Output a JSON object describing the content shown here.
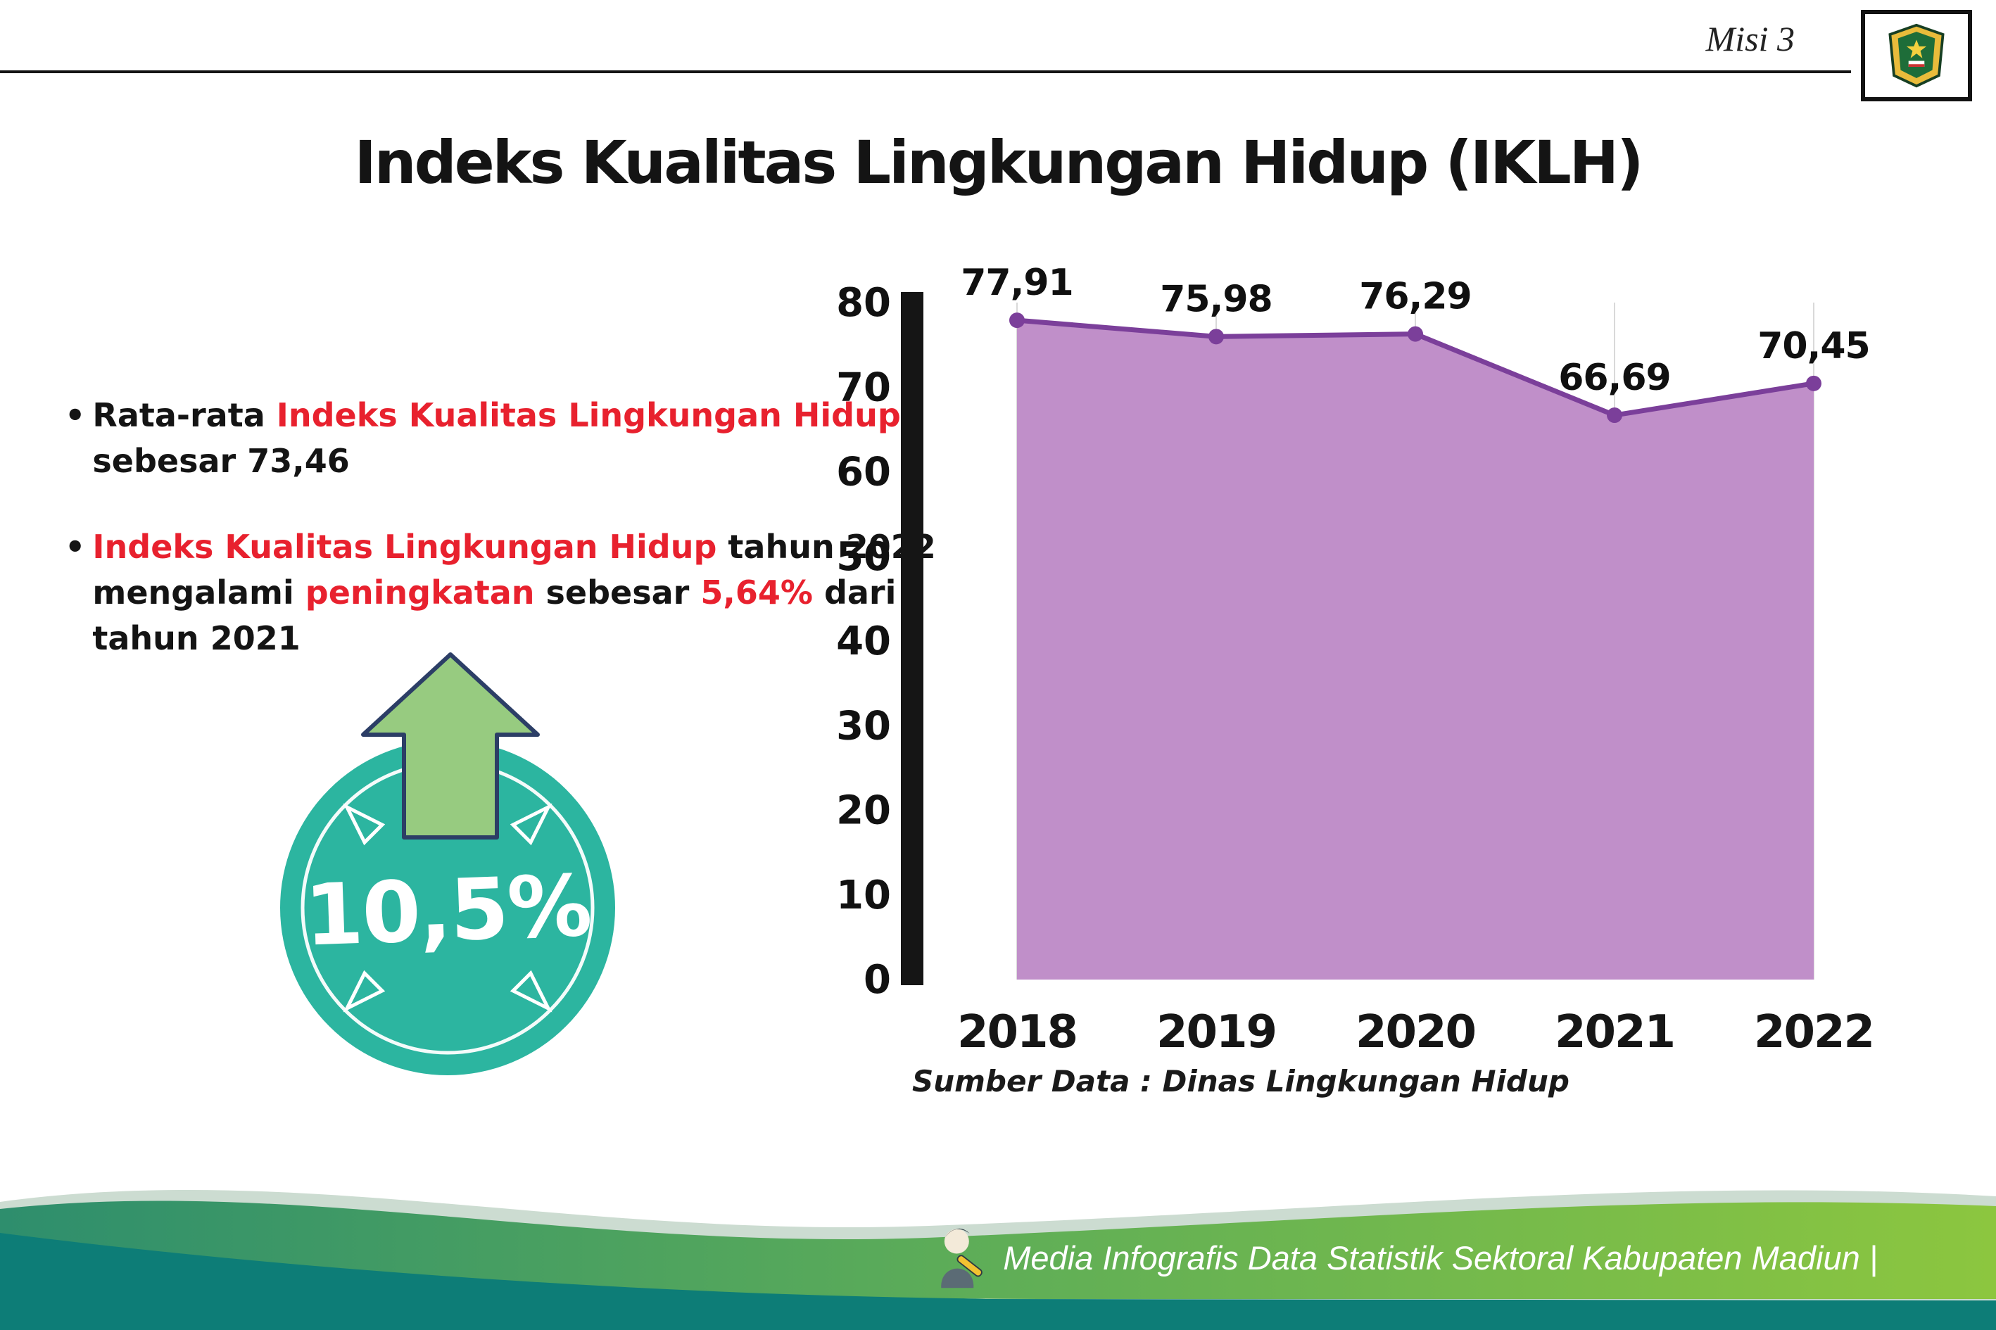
{
  "page": {
    "misi_label": "Misi 3",
    "title": "Indeks Kualitas Lingkungan Hidup (IKLH)"
  },
  "bullets": {
    "bullet_char": "•",
    "b1": {
      "p1": "Rata-rata ",
      "p2": "Indeks Kualitas Lingkungan Hidup",
      "p3": " sebesar 73,46"
    },
    "b2": {
      "p1": "Indeks Kualitas Lingkungan Hidup",
      "p2": " tahun 2022 mengalami ",
      "p3": "peningkatan",
      "p4": " sebesar ",
      "p5": "5,64%",
      "p6": " dari tahun 2021"
    }
  },
  "badge": {
    "value": "10,5%"
  },
  "chart_data": {
    "type": "area",
    "title": "",
    "xlabel": "",
    "ylabel": "",
    "categories": [
      "2018",
      "2019",
      "2020",
      "2021",
      "2022"
    ],
    "values": [
      77.91,
      75.98,
      76.29,
      66.69,
      70.45
    ],
    "value_labels": [
      "77,91",
      "75,98",
      "76,29",
      "66,69",
      "70,45"
    ],
    "ylim": [
      0,
      80
    ],
    "yticks": [
      0,
      10,
      20,
      30,
      40,
      50,
      60,
      70,
      80
    ],
    "grid": "vertical-light",
    "legend": "none",
    "area_color": "#c08fc9",
    "line_color": "#7b3f9a",
    "source": "Sumber Data : Dinas Lingkungan Hidup"
  },
  "footer": {
    "credit": "Media Infografis Data Statistik Sektoral Kabupaten Madiun |"
  },
  "colors": {
    "red": "#e8212e",
    "teal": "#2cb5a0",
    "arrow_green": "#97cb80",
    "purple_area": "#c08fc9",
    "purple_line": "#7b3f9a",
    "footer_dark_teal": "#0d7d77"
  }
}
